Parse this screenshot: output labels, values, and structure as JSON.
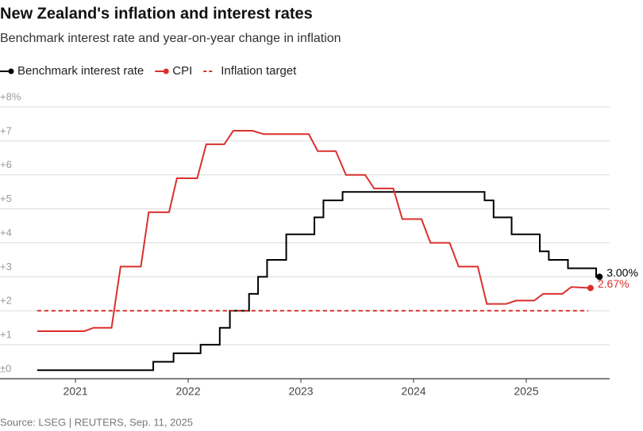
{
  "chart_data": {
    "type": "line",
    "title": "New Zealand's inflation and interest rates",
    "subtitle": "Benchmark interest rate and year-on-year change in inflation",
    "source": "Source: LSEG | REUTERS, Sep. 11, 2025",
    "xlim": [
      2020.33,
      2025.74
    ],
    "xticks": [
      2021,
      2022,
      2023,
      2024,
      2025
    ],
    "ylim": [
      0,
      8
    ],
    "yticks": [
      {
        "value": 0,
        "label": "±0"
      },
      {
        "value": 1,
        "label": "+1"
      },
      {
        "value": 2,
        "label": "+2"
      },
      {
        "value": 3,
        "label": "+3"
      },
      {
        "value": 4,
        "label": "+4"
      },
      {
        "value": 5,
        "label": "+5"
      },
      {
        "value": 6,
        "label": "+6"
      },
      {
        "value": 7,
        "label": "+7"
      },
      {
        "value": 8,
        "label": "+8%"
      }
    ],
    "grid": true,
    "legend": "top-left",
    "series": [
      {
        "name": "Benchmark interest rate",
        "color": "#000000",
        "step": true,
        "dash": false,
        "end_marker": true,
        "x": [
          2020.66,
          2021.69,
          2021.87,
          2022.11,
          2022.28,
          2022.37,
          2022.54,
          2022.62,
          2022.7,
          2022.87,
          2023.12,
          2023.2,
          2023.37,
          2024.63,
          2024.71,
          2024.87,
          2025.12,
          2025.2,
          2025.37,
          2025.62,
          2025.65
        ],
        "values": [
          0.25,
          0.5,
          0.75,
          1.0,
          1.5,
          2.0,
          2.5,
          3.0,
          3.5,
          4.25,
          4.75,
          5.25,
          5.5,
          5.25,
          4.75,
          4.25,
          3.75,
          3.5,
          3.25,
          3.0,
          3.0
        ],
        "value_labels": [
          null,
          null,
          null,
          null,
          null,
          null,
          null,
          null,
          null,
          null,
          null,
          null,
          null,
          null,
          null,
          null,
          null,
          null,
          null,
          null,
          "3.00%"
        ]
      },
      {
        "name": "CPI",
        "color": "#d9302c",
        "step": false,
        "dash": false,
        "end_marker": true,
        "x": [
          2020.66,
          2021.08,
          2021.16,
          2021.32,
          2021.4,
          2021.58,
          2021.65,
          2021.83,
          2021.9,
          2022.08,
          2022.16,
          2022.32,
          2022.4,
          2022.57,
          2022.67,
          2023.07,
          2023.15,
          2023.31,
          2023.4,
          2023.57,
          2023.65,
          2023.82,
          2023.9,
          2024.07,
          2024.15,
          2024.32,
          2024.4,
          2024.57,
          2024.65,
          2024.82,
          2024.91,
          2025.07,
          2025.15,
          2025.32,
          2025.4,
          2025.57
        ],
        "values": [
          1.4,
          1.4,
          1.5,
          1.5,
          3.3,
          3.3,
          4.9,
          4.9,
          5.9,
          5.9,
          6.9,
          6.9,
          7.3,
          7.3,
          7.2,
          7.2,
          6.7,
          6.7,
          6.0,
          6.0,
          5.6,
          5.6,
          4.7,
          4.7,
          4.0,
          4.0,
          3.3,
          3.3,
          2.2,
          2.2,
          2.3,
          2.3,
          2.5,
          2.5,
          2.7,
          2.67
        ],
        "value_labels": [
          null,
          null,
          null,
          null,
          null,
          null,
          null,
          null,
          null,
          null,
          null,
          null,
          null,
          null,
          null,
          null,
          null,
          null,
          null,
          null,
          null,
          null,
          null,
          null,
          null,
          null,
          null,
          null,
          null,
          null,
          null,
          null,
          null,
          null,
          null,
          "2.67%"
        ]
      },
      {
        "name": "Inflation target",
        "color": "#d9302c",
        "step": false,
        "dash": true,
        "end_marker": false,
        "x": [
          2020.66,
          2025.55
        ],
        "values": [
          2,
          2
        ]
      }
    ]
  }
}
